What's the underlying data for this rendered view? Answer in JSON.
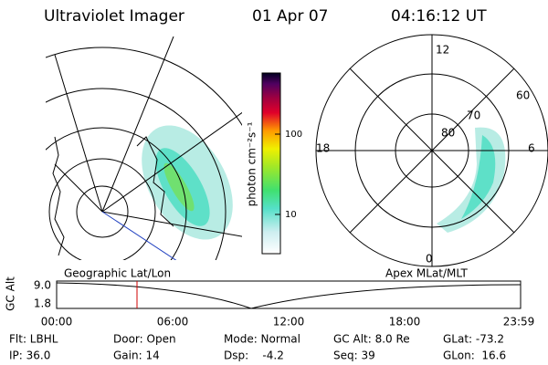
{
  "header": {
    "title": "Ultraviolet Imager",
    "date": "01 Apr 07",
    "time": "04:16:12 UT"
  },
  "colorbar": {
    "label": "photon cm⁻²s⁻¹",
    "ticks": [
      "100",
      "10"
    ]
  },
  "map": {
    "label": "Geographic Lat/Lon"
  },
  "polar": {
    "label": "Apex MLat/MLT",
    "mlt": [
      "12",
      "18",
      "6",
      "0"
    ],
    "mlat": [
      "60",
      "70",
      "80"
    ]
  },
  "altitude": {
    "axis_label": "GC Alt",
    "ticks": [
      "9.0",
      "1.8"
    ],
    "times": [
      "00:00",
      "06:00",
      "12:00",
      "18:00",
      "23:59"
    ]
  },
  "status": {
    "rows": [
      [
        "Flt: LBHL",
        "Door: Open",
        "Mode: Normal",
        "GC Alt: 8.0 Re",
        "GLat: -73.2"
      ],
      [
        "IP: 36.0",
        "Gain: 14",
        "Dsp:    -4.2",
        "Seq: 39",
        "GLon:  16.6"
      ]
    ]
  }
}
